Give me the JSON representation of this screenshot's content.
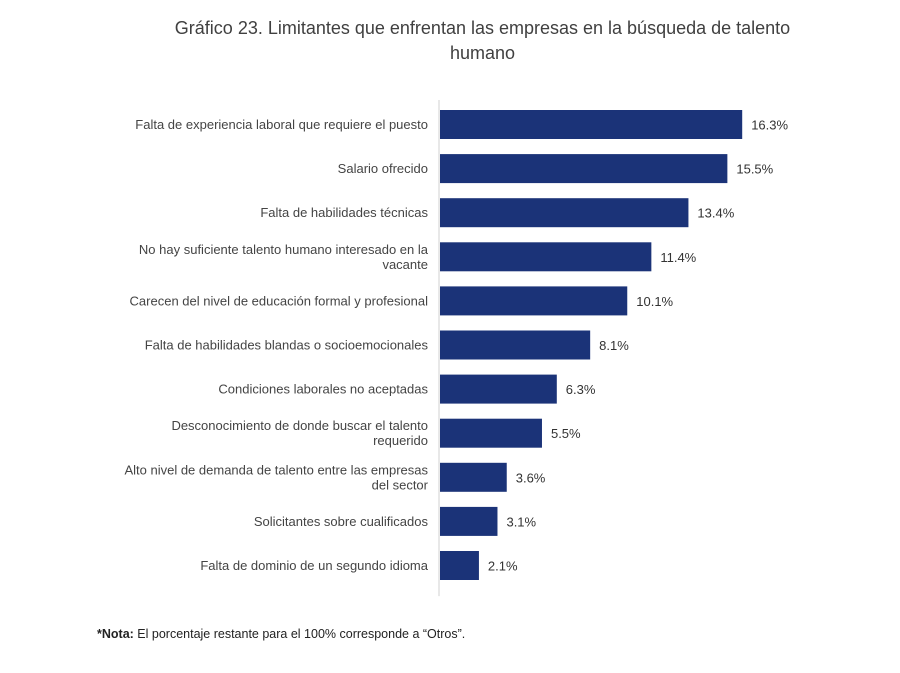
{
  "chart_data": {
    "type": "bar",
    "orientation": "horizontal",
    "title": "Gráfico 23. Limitantes que enfrentan las empresas en la búsqueda de talento humano",
    "categories": [
      "Falta de experiencia laboral que requiere el puesto",
      "Salario ofrecido",
      "Falta de habilidades técnicas",
      "No hay suficiente talento humano interesado en la vacante",
      "Carecen del nivel de educación formal y profesional",
      "Falta de habilidades blandas o socioemocionales",
      "Condiciones laborales no aceptadas",
      "Desconocimiento de donde buscar el talento requerido",
      "Alto nivel de demanda de talento entre las empresas del sector",
      "Solicitantes sobre cualificados",
      "Falta de dominio de un segundo idioma"
    ],
    "category_lines": [
      [
        "Falta de experiencia laboral que requiere el puesto"
      ],
      [
        "Salario ofrecido"
      ],
      [
        "Falta de habilidades técnicas"
      ],
      [
        "No hay suficiente talento humano interesado en la",
        "vacante"
      ],
      [
        "Carecen del nivel de educación formal y profesional"
      ],
      [
        "Falta de habilidades blandas o socioemocionales"
      ],
      [
        "Condiciones laborales no aceptadas"
      ],
      [
        "Desconocimiento de donde buscar el talento",
        "requerido"
      ],
      [
        "Alto nivel de demanda de talento entre las empresas",
        "del sector"
      ],
      [
        "Solicitantes sobre cualificados"
      ],
      [
        "Falta de dominio de un segundo idioma"
      ]
    ],
    "values": [
      16.3,
      15.5,
      13.4,
      11.4,
      10.1,
      8.1,
      6.3,
      5.5,
      3.6,
      3.1,
      2.1
    ],
    "value_labels": [
      "16.3%",
      "15.5%",
      "13.4%",
      "11.4%",
      "10.1%",
      "8.1%",
      "6.3%",
      "5.5%",
      "3.6%",
      "3.1%",
      "2.1%"
    ],
    "unit": "%",
    "bar_color": "#1b3378",
    "xlabel": "",
    "ylabel": "",
    "grid": false,
    "legend": "none"
  },
  "note": {
    "bold": "*Nota:",
    "text": " El porcentaje restante para el 100% corresponde a “Otros”."
  }
}
